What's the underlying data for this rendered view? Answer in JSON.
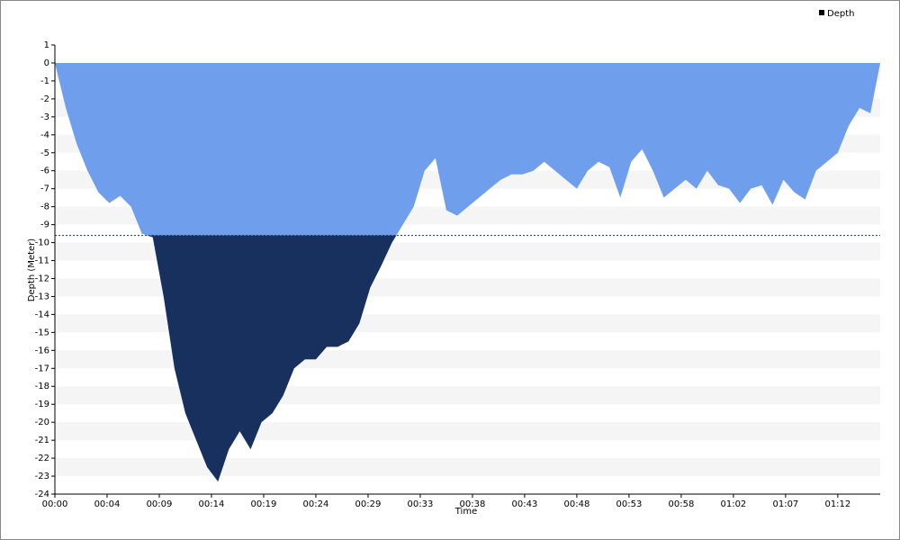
{
  "chart_data": {
    "type": "area",
    "x_label": "Time",
    "y_label": "Depth (Meter)",
    "x": [
      0,
      1,
      2,
      3,
      4,
      5,
      6,
      7,
      8,
      9,
      10,
      11,
      12,
      13,
      14,
      15,
      16,
      17,
      18,
      19,
      20,
      21,
      22,
      23,
      24,
      25,
      26,
      27,
      28,
      29,
      30,
      31,
      32,
      33,
      34,
      35,
      36,
      37,
      38,
      39,
      40,
      41,
      42,
      43,
      44,
      45,
      46,
      47,
      48,
      49,
      50,
      51,
      52,
      53,
      54,
      55,
      56,
      57,
      58,
      59,
      60,
      61,
      62,
      63,
      64,
      65,
      66,
      67,
      68,
      69,
      70,
      71,
      72,
      73,
      74,
      75,
      75.9
    ],
    "series": [
      {
        "name": "Depth",
        "color": "#6f9fec",
        "values": [
          0,
          -2.5,
          -4.5,
          -6,
          -7.2,
          -7.8,
          -7.4,
          -8,
          -9.5,
          -9.7,
          -13,
          -17,
          -19.5,
          -21,
          -22.5,
          -23.3,
          -21.5,
          -20.5,
          -21.5,
          -20,
          -19.5,
          -18.5,
          -17,
          -16.5,
          -16.5,
          -15.8,
          -15.8,
          -15.5,
          -14.5,
          -12.5,
          -11.3,
          -10,
          -9,
          -8,
          -6,
          -5.3,
          -8.2,
          -8.5,
          -8,
          -7.5,
          -7,
          -6.5,
          -6.2,
          -6.2,
          -6,
          -5.5,
          -6,
          -6.5,
          -7,
          -6,
          -5.5,
          -5.8,
          -7.5,
          -5.5,
          -4.8,
          -6,
          -7.5,
          -7,
          -6.5,
          -7,
          -6,
          -6.8,
          -7,
          -7.8,
          -7,
          -6.8,
          -7.9,
          -6.5,
          -7.2,
          -7.6,
          -6,
          -5.5,
          -5,
          -3.5,
          -2.5,
          -2.8,
          0
        ]
      }
    ],
    "threshold": -9.6,
    "threshold_color": "#17305e",
    "xlim": [
      0,
      75.9
    ],
    "xticks": [
      {
        "value": 0,
        "label": "00:00"
      },
      {
        "value": 4.8,
        "label": "00:04"
      },
      {
        "value": 9.6,
        "label": "00:09"
      },
      {
        "value": 14.4,
        "label": "00:14"
      },
      {
        "value": 19.2,
        "label": "00:19"
      },
      {
        "value": 24,
        "label": "00:24"
      },
      {
        "value": 28.8,
        "label": "00:29"
      },
      {
        "value": 33.6,
        "label": "00:33"
      },
      {
        "value": 38.4,
        "label": "00:38"
      },
      {
        "value": 43.2,
        "label": "00:43"
      },
      {
        "value": 48,
        "label": "00:48"
      },
      {
        "value": 52.8,
        "label": "00:53"
      },
      {
        "value": 57.6,
        "label": "00:58"
      },
      {
        "value": 62.4,
        "label": "01:02"
      },
      {
        "value": 67.2,
        "label": "01:07"
      },
      {
        "value": 72,
        "label": "01:12"
      }
    ],
    "ylim": [
      -24,
      1
    ],
    "yticks": [
      1,
      0,
      -1,
      -2,
      -3,
      -4,
      -5,
      -6,
      -7,
      -8,
      -9,
      -10,
      -11,
      -12,
      -13,
      -14,
      -15,
      -16,
      -17,
      -18,
      -19,
      -20,
      -21,
      -22,
      -23,
      -24
    ],
    "grid": "bands",
    "legend": "top-right"
  }
}
